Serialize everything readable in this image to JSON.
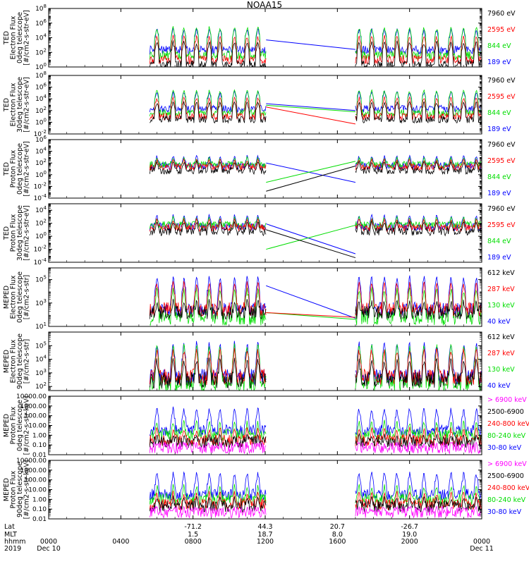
{
  "title": "NOAA15",
  "colors": {
    "black": "#000000",
    "red": "#ff0000",
    "green": "#00dd00",
    "blue": "#0000ff",
    "magenta": "#ff00ff"
  },
  "chart_data": [
    {
      "type": "line",
      "ylabel": [
        "TED",
        "Electron Flux",
        "0deg telescope",
        "[#/cm2-s-str-eV]"
      ],
      "yscale": "log",
      "ylim": [
        1,
        100000000
      ],
      "yticks": [
        {
          "v": 1,
          "label": "10",
          "exp": "0"
        },
        {
          "v": 100,
          "label": "10",
          "exp": "2"
        },
        {
          "v": 10000,
          "label": "10",
          "exp": "4"
        },
        {
          "v": 1000000,
          "label": "10",
          "exp": "6"
        },
        {
          "v": 100000000,
          "label": "10",
          "exp": "8"
        }
      ],
      "series": [
        {
          "name": "7960 eV",
          "color": "#000000",
          "base": 2,
          "spike": 5000,
          "gap_y": [
            null,
            null
          ]
        },
        {
          "name": "2595 eV",
          "color": "#ff0000",
          "base": 10,
          "spike": 30000,
          "gap_y": [
            null,
            null
          ]
        },
        {
          "name": "844 eV",
          "color": "#00dd00",
          "base": 40,
          "spike": 500000,
          "gap_y": [
            null,
            null
          ]
        },
        {
          "name": "189 eV",
          "color": "#0000ff",
          "base": 200,
          "spike": 300000,
          "gap_y": [
            5000,
            250
          ]
        }
      ]
    },
    {
      "type": "line",
      "ylabel": [
        "TED",
        "Electron Flux",
        "30deg telescope",
        "[#/cm2-s-str-eV]"
      ],
      "yscale": "log",
      "ylim": [
        0.01,
        100000000
      ],
      "yticks": [
        {
          "v": 0.01,
          "label": "10",
          "exp": "-2"
        },
        {
          "v": 1,
          "label": "10",
          "exp": "0"
        },
        {
          "v": 100,
          "label": "10",
          "exp": "2"
        },
        {
          "v": 10000,
          "label": "10",
          "exp": "4"
        },
        {
          "v": 1000000,
          "label": "10",
          "exp": "6"
        },
        {
          "v": 100000000,
          "label": "10",
          "exp": "8"
        }
      ],
      "series": [
        {
          "name": "7960 eV",
          "color": "#000000",
          "base": 3,
          "spike": 5000,
          "gap_y": [
            null,
            null
          ]
        },
        {
          "name": "2595 eV",
          "color": "#ff0000",
          "base": 10,
          "spike": 30000,
          "gap_y": [
            400,
            0.5
          ]
        },
        {
          "name": "844 eV",
          "color": "#00dd00",
          "base": 40,
          "spike": 500000,
          "gap_y": [
            800,
            60
          ]
        },
        {
          "name": "189 eV",
          "color": "#0000ff",
          "base": 200,
          "spike": 300000,
          "gap_y": [
            1500,
            100
          ]
        }
      ]
    },
    {
      "type": "line",
      "ylabel": [
        "TED",
        "Proton Flux",
        "0deg telescope",
        "[#/cm2-s-str-eV]"
      ],
      "yscale": "log",
      "ylim": [
        0.0001,
        1000000
      ],
      "yticks": [
        {
          "v": 0.0001,
          "label": "10",
          "exp": "-4"
        },
        {
          "v": 0.01,
          "label": "10",
          "exp": "-2"
        },
        {
          "v": 1,
          "label": "10",
          "exp": "0"
        },
        {
          "v": 100,
          "label": "10",
          "exp": "2"
        },
        {
          "v": 10000,
          "label": "10",
          "exp": "4"
        },
        {
          "v": 1000000,
          "label": "10",
          "exp": "6"
        }
      ],
      "series": [
        {
          "name": "7960 eV",
          "color": "#000000",
          "base": 5,
          "spike": 300,
          "gap_y": [
            0.0015,
            30
          ]
        },
        {
          "name": "2595 eV",
          "color": "#ff0000",
          "base": 20,
          "spike": 800,
          "gap_y": [
            null,
            null
          ]
        },
        {
          "name": "844 eV",
          "color": "#00dd00",
          "base": 50,
          "spike": 1500,
          "gap_y": [
            0.05,
            200
          ]
        },
        {
          "name": "189 eV",
          "color": "#0000ff",
          "base": 30,
          "spike": 3000,
          "gap_y": [
            100,
            0.05
          ]
        }
      ]
    },
    {
      "type": "line",
      "ylabel": [
        "TED",
        "Proton Flux",
        "30deg telescope",
        "[#/cm2-s-str-eV]"
      ],
      "yscale": "log",
      "ylim": [
        0.0001,
        100000
      ],
      "yticks": [
        {
          "v": 0.0001,
          "label": "10",
          "exp": "-4"
        },
        {
          "v": 0.01,
          "label": "10",
          "exp": "-2"
        },
        {
          "v": 1,
          "label": "10",
          "exp": "0"
        },
        {
          "v": 100,
          "label": "10",
          "exp": "2"
        },
        {
          "v": 10000,
          "label": "10",
          "exp": "4"
        }
      ],
      "series": [
        {
          "name": "7960 eV",
          "color": "#000000",
          "base": 5,
          "spike": 300,
          "gap_y": [
            10,
            0.0005
          ]
        },
        {
          "name": "2595 eV",
          "color": "#ff0000",
          "base": 20,
          "spike": 800,
          "gap_y": [
            null,
            null
          ]
        },
        {
          "name": "844 eV",
          "color": "#00dd00",
          "base": 50,
          "spike": 1500,
          "gap_y": [
            0.01,
            50
          ]
        },
        {
          "name": "189 eV",
          "color": "#0000ff",
          "base": 30,
          "spike": 3000,
          "gap_y": [
            80,
            0.002
          ]
        }
      ]
    },
    {
      "type": "line",
      "ylabel": [
        "MEPED",
        "Electron Flux",
        "0deg telescope",
        "[#/cm2-s-str]"
      ],
      "yscale": "log",
      "ylim": [
        10,
        1000000
      ],
      "yticks": [
        {
          "v": 10,
          "label": "10",
          "exp": "1"
        },
        {
          "v": 1000,
          "label": "10",
          "exp": "3"
        },
        {
          "v": 100000,
          "label": "10",
          "exp": "5"
        }
      ],
      "series": [
        {
          "name": "612 keV",
          "color": "#000000",
          "base": 150,
          "spike": 3000,
          "gap_y": [
            null,
            null
          ]
        },
        {
          "name": "287 keV",
          "color": "#ff0000",
          "base": 300,
          "spike": 100000,
          "gap_y": [
            150,
            60
          ]
        },
        {
          "name": "130 keV",
          "color": "#00dd00",
          "base": 50,
          "spike": 30000,
          "gap_y": [
            150,
            40
          ]
        },
        {
          "name": "40 keV",
          "color": "#0000ff",
          "base": 300,
          "spike": 300000,
          "gap_y": [
            30000,
            50
          ]
        }
      ]
    },
    {
      "type": "line",
      "ylabel": [
        "MEPED",
        "Electron Flux",
        "90deg telescope",
        "[#/cm2-s-str]"
      ],
      "yscale": "log",
      "ylim": [
        50,
        1000000
      ],
      "yticks": [
        {
          "v": 100,
          "label": "10",
          "exp": "2"
        },
        {
          "v": 1000,
          "label": "10",
          "exp": "3"
        },
        {
          "v": 10000,
          "label": "10",
          "exp": "4"
        },
        {
          "v": 100000,
          "label": "10",
          "exp": "5"
        }
      ],
      "series": [
        {
          "name": "612 keV",
          "color": "#000000",
          "base": 300,
          "spike": 20000,
          "gap_y": [
            null,
            null
          ]
        },
        {
          "name": "287 keV",
          "color": "#ff0000",
          "base": 500,
          "spike": 100000,
          "gap_y": [
            null,
            null
          ]
        },
        {
          "name": "130 keV",
          "color": "#00dd00",
          "base": 150,
          "spike": 200000,
          "gap_y": [
            null,
            null
          ]
        },
        {
          "name": "40 keV",
          "color": "#0000ff",
          "base": 500,
          "spike": 300000,
          "gap_y": [
            null,
            null
          ]
        }
      ]
    },
    {
      "type": "line",
      "ylabel": [
        "MEPED",
        "Proton Flux",
        "0deg telescope",
        "[#/cm2-s-str-keV]"
      ],
      "yscale": "log",
      "ylim": [
        0.01,
        10000
      ],
      "yticks": [
        {
          "v": 0.01,
          "label": "0.01"
        },
        {
          "v": 0.1,
          "label": "0.10"
        },
        {
          "v": 1,
          "label": "1.00"
        },
        {
          "v": 10,
          "label": "10.00"
        },
        {
          "v": 100,
          "label": "100.00"
        },
        {
          "v": 1000,
          "label": "1000.00"
        },
        {
          "v": 10000,
          "label": "10000.00"
        }
      ],
      "series": [
        {
          "name": "> 6900 keV",
          "color": "#ff00ff",
          "base": 0.05,
          "spike": 0.3,
          "gap_y": [
            null,
            null
          ]
        },
        {
          "name": "2500-6900",
          "color": "#000000",
          "base": 0.2,
          "spike": 2,
          "gap_y": [
            null,
            null
          ]
        },
        {
          "name": "240-800 keV",
          "color": "#ff0000",
          "base": 0.3,
          "spike": 10,
          "gap_y": [
            null,
            null
          ]
        },
        {
          "name": "80-240 keV",
          "color": "#00dd00",
          "base": 1,
          "spike": 50,
          "gap_y": [
            null,
            null
          ]
        },
        {
          "name": "30-80 keV",
          "color": "#0000ff",
          "base": 3,
          "spike": 1000,
          "gap_y": [
            null,
            null
          ]
        }
      ]
    },
    {
      "type": "line",
      "ylabel": [
        "MEPED",
        "Proton Flux",
        "90deg telescope",
        "[#/cm2-s-str-keV]"
      ],
      "yscale": "log",
      "ylim": [
        0.01,
        10000
      ],
      "yticks": [
        {
          "v": 0.01,
          "label": "0.01"
        },
        {
          "v": 0.1,
          "label": "0.10"
        },
        {
          "v": 1,
          "label": "1.00"
        },
        {
          "v": 10,
          "label": "10.00"
        },
        {
          "v": 100,
          "label": "100.00"
        },
        {
          "v": 1000,
          "label": "1000.00"
        },
        {
          "v": 10000,
          "label": "10000.00"
        }
      ],
      "series": [
        {
          "name": "> 6900 keV",
          "color": "#ff00ff",
          "base": 0.05,
          "spike": 0.3,
          "gap_y": [
            null,
            null
          ]
        },
        {
          "name": "2500-6900",
          "color": "#000000",
          "base": 0.2,
          "spike": 3,
          "gap_y": [
            null,
            null
          ]
        },
        {
          "name": "240-800 keV",
          "color": "#ff0000",
          "base": 0.3,
          "spike": 10,
          "gap_y": [
            null,
            null
          ]
        },
        {
          "name": "80-240 keV",
          "color": "#00dd00",
          "base": 1,
          "spike": 50,
          "gap_y": [
            null,
            null
          ]
        },
        {
          "name": "30-80 keV",
          "color": "#0000ff",
          "base": 3,
          "spike": 1000,
          "gap_y": [
            null,
            null
          ]
        }
      ]
    }
  ],
  "time_axis": {
    "xlim_hours": [
      0,
      24
    ],
    "data_segments_hours": [
      [
        5.6,
        12.05
      ],
      [
        17.0,
        24.0
      ]
    ],
    "gap_hours": [
      12.05,
      17.0
    ],
    "row_labels": [
      "Lat",
      "MLT",
      "hhmm",
      "2019"
    ],
    "ticks": [
      {
        "hour": 0,
        "hhmm": "0000",
        "day": "Dec 10",
        "lat": "",
        "mlt": ""
      },
      {
        "hour": 4,
        "hhmm": "0400",
        "day": "",
        "lat": "",
        "mlt": ""
      },
      {
        "hour": 8,
        "hhmm": "0800",
        "day": "",
        "lat": "-71.2",
        "mlt": "1.5"
      },
      {
        "hour": 12,
        "hhmm": "1200",
        "day": "",
        "lat": "44.3",
        "mlt": "18.7"
      },
      {
        "hour": 16,
        "hhmm": "1600",
        "day": "",
        "lat": "20.7",
        "mlt": "8.0"
      },
      {
        "hour": 20,
        "hhmm": "2000",
        "day": "",
        "lat": "-26.7",
        "mlt": "19.0"
      },
      {
        "hour": 24,
        "hhmm": "0000",
        "day": "Dec 11",
        "lat": "",
        "mlt": ""
      }
    ]
  }
}
